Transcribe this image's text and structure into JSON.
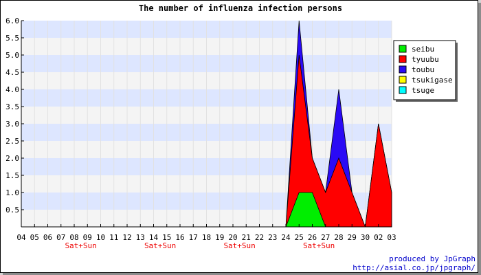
{
  "chart_data": {
    "type": "area",
    "title": "The number of influenza infection persons",
    "xlabel": "",
    "ylabel": "",
    "ylim": [
      0,
      6.0
    ],
    "yticks": [
      "0.5",
      "1.0",
      "1.5",
      "2.0",
      "2.5",
      "3.0",
      "3.5",
      "4.0",
      "4.5",
      "5.0",
      "5.5",
      "6.0"
    ],
    "categories": [
      "04",
      "05",
      "06",
      "07",
      "08",
      "09",
      "10",
      "11",
      "12",
      "13",
      "14",
      "15",
      "16",
      "17",
      "18",
      "19",
      "20",
      "21",
      "22",
      "23",
      "24",
      "25",
      "26",
      "27",
      "28",
      "29",
      "30",
      "02",
      "03"
    ],
    "weekend_labels": [
      {
        "index": 4.5,
        "label": "Sat+Sun"
      },
      {
        "index": 10.5,
        "label": "Sat+Sun"
      },
      {
        "index": 16.5,
        "label": "Sat+Sun"
      },
      {
        "index": 22.5,
        "label": "Sat+Sun"
      }
    ],
    "grid": true,
    "legend_position": "top-right",
    "series": [
      {
        "name": "toubu",
        "color": "#2a0af5",
        "values": [
          0,
          0,
          0,
          0,
          0,
          0,
          0,
          0,
          0,
          0,
          0,
          0,
          0,
          0,
          0,
          0,
          0,
          0,
          0,
          0,
          0,
          6,
          2,
          1,
          4,
          1,
          0,
          3,
          1
        ]
      },
      {
        "name": "tyuubu",
        "color": "#ff0000",
        "values": [
          0,
          0,
          0,
          0,
          0,
          0,
          0,
          0,
          0,
          0,
          0,
          0,
          0,
          0,
          0,
          0,
          0,
          0,
          0,
          0,
          0,
          5,
          2,
          1,
          2,
          1,
          0,
          3,
          1
        ]
      },
      {
        "name": "seibu",
        "color": "#00ee00",
        "values": [
          0,
          0,
          0,
          0,
          0,
          0,
          0,
          0,
          0,
          0,
          0,
          0,
          0,
          0,
          0,
          0,
          0,
          0,
          0,
          0,
          0,
          1,
          1,
          0,
          0,
          0,
          0,
          0,
          0
        ]
      }
    ],
    "legend": [
      {
        "name": "seibu",
        "color": "#00ee00"
      },
      {
        "name": "tyuubu",
        "color": "#ff0000"
      },
      {
        "name": "toubu",
        "color": "#2a0af5"
      },
      {
        "name": "tsukigase",
        "color": "#ffff00"
      },
      {
        "name": "tsuge",
        "color": "#00ffff"
      }
    ]
  },
  "credit": {
    "line1": "produced by JpGraph",
    "line2": "http://asial.co.jp/jpgraph/"
  }
}
